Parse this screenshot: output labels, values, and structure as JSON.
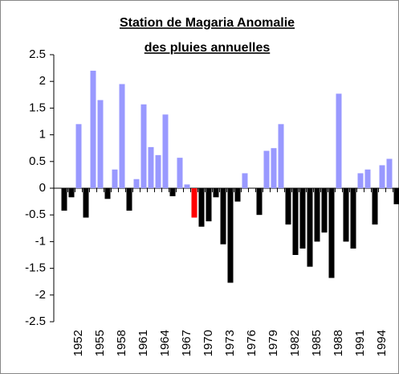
{
  "chart_data": {
    "type": "bar",
    "title": [
      "Station de Magaria Anomalie",
      "des pluies annuelles"
    ],
    "categories": [
      null,
      null,
      "1952",
      null,
      null,
      "1955",
      null,
      null,
      "1958",
      null,
      null,
      "1961",
      null,
      null,
      "1964",
      null,
      null,
      "1967",
      null,
      null,
      "1970",
      null,
      null,
      "1973",
      null,
      null,
      "1976",
      null,
      null,
      "1979",
      null,
      null,
      "1982",
      null,
      null,
      "1985",
      null,
      null,
      "1988",
      null,
      null,
      "1991",
      null,
      null,
      "1994",
      null,
      null
    ],
    "values": [
      -0.42,
      -0.17,
      1.2,
      -0.55,
      2.2,
      1.65,
      -0.2,
      0.35,
      1.95,
      -0.42,
      0.17,
      1.57,
      0.77,
      0.62,
      1.38,
      -0.15,
      0.57,
      0.07,
      -0.55,
      -0.72,
      -0.62,
      -0.17,
      -1.05,
      -1.77,
      -0.25,
      0.28,
      0,
      -0.5,
      0.7,
      0.75,
      1.2,
      -0.68,
      -1.25,
      -1.13,
      -1.47,
      -1.0,
      -0.83,
      -1.68,
      1.77,
      -1.0,
      -1.13,
      0.28,
      0.35,
      -0.68,
      0.43,
      0.55,
      -0.3
    ],
    "colors": [
      "#000000",
      "#000000",
      "#9999ff",
      "#000000",
      "#9999ff",
      "#9999ff",
      "#000000",
      "#9999ff",
      "#9999ff",
      "#000000",
      "#9999ff",
      "#9999ff",
      "#9999ff",
      "#9999ff",
      "#9999ff",
      "#000000",
      "#9999ff",
      "#9999ff",
      "#ff0000",
      "#000000",
      "#000000",
      "#000000",
      "#000000",
      "#000000",
      "#000000",
      "#9999ff",
      "#9999ff",
      "#000000",
      "#9999ff",
      "#9999ff",
      "#9999ff",
      "#000000",
      "#000000",
      "#000000",
      "#000000",
      "#000000",
      "#000000",
      "#000000",
      "#9999ff",
      "#000000",
      "#000000",
      "#9999ff",
      "#9999ff",
      "#000000",
      "#9999ff",
      "#9999ff",
      "#000000"
    ],
    "ylim": [
      -2.5,
      2.5
    ],
    "yticks": [
      -2.5,
      -2,
      -1.5,
      -1,
      -0.5,
      0,
      0.5,
      1,
      1.5,
      2,
      2.5
    ],
    "grid": false
  }
}
